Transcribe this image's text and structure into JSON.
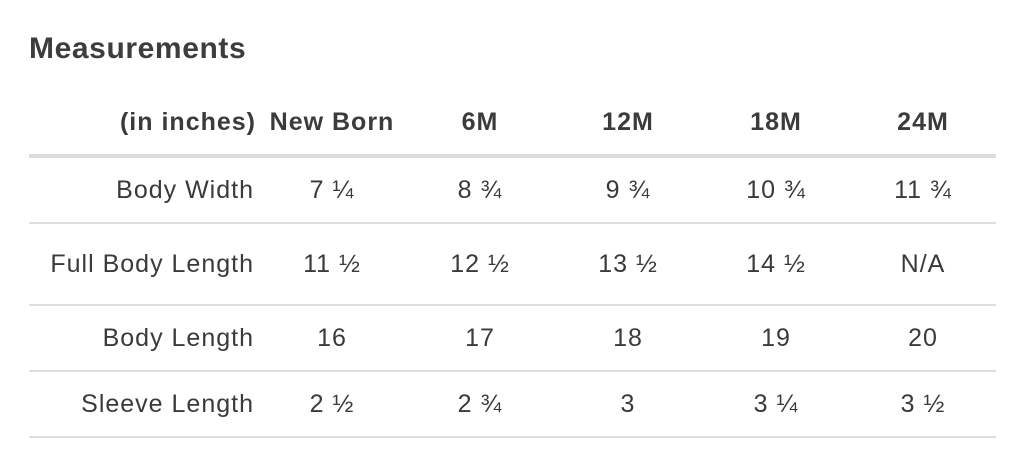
{
  "section": {
    "title": "Measurements"
  },
  "table": {
    "corner_label": "(in inches)",
    "columns": [
      "New Born",
      "6M",
      "12M",
      "18M",
      "24M"
    ],
    "rows": [
      {
        "label": "Body Width",
        "values": [
          "7 ¼",
          "8 ¾",
          "9 ¾",
          "10 ¾",
          "11 ¾"
        ]
      },
      {
        "label": "Full Body Length",
        "values": [
          "11 ½",
          "12 ½",
          "13 ½",
          "14 ½",
          "N/A"
        ]
      },
      {
        "label": "Body Length",
        "values": [
          "16",
          "17",
          "18",
          "19",
          "20"
        ]
      },
      {
        "label": "Sleeve Length",
        "values": [
          "2 ½",
          "2 ¾",
          "3",
          "3 ¼",
          "3 ½"
        ]
      }
    ]
  }
}
